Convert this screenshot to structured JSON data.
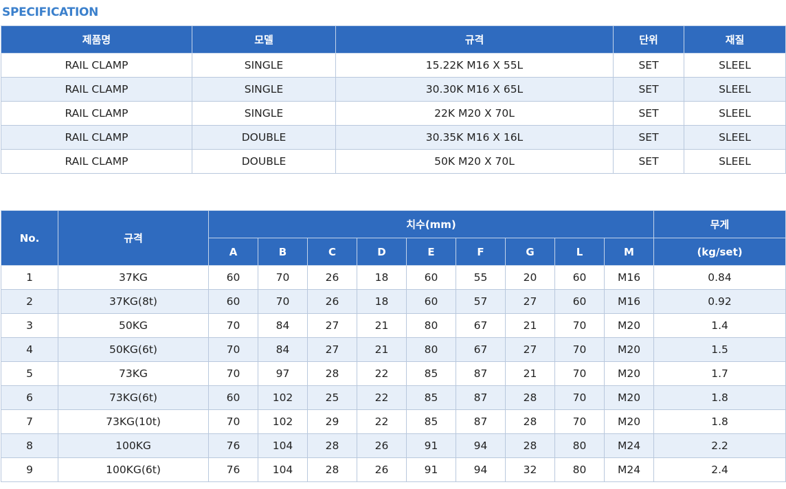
{
  "section_title": "SPECIFICATION",
  "spec_table": {
    "headers": [
      "제품명",
      "모델",
      "규격",
      "단위",
      "재질"
    ],
    "rows": [
      [
        "RAIL CLAMP",
        "SINGLE",
        "15.22K  M16 X 55L",
        "SET",
        "SLEEL"
      ],
      [
        "RAIL CLAMP",
        "SINGLE",
        "30.30K  M16 X 65L",
        "SET",
        "SLEEL"
      ],
      [
        "RAIL CLAMP",
        "SINGLE",
        "22K  M20 X 70L",
        "SET",
        "SLEEL"
      ],
      [
        "RAIL CLAMP",
        "DOUBLE",
        "30.35K  M16 X 16L",
        "SET",
        "SLEEL"
      ],
      [
        "RAIL CLAMP",
        "DOUBLE",
        "50K  M20 X 70L",
        "SET",
        "SLEEL"
      ]
    ]
  },
  "dim_table": {
    "headers": {
      "no": "No.",
      "spec": "규격",
      "dimensions": "치수(mm)",
      "weight": "무게",
      "weight_unit": "(kg/set)",
      "dim_cols": [
        "A",
        "B",
        "C",
        "D",
        "E",
        "F",
        "G",
        "L",
        "M"
      ]
    },
    "rows": [
      [
        "1",
        "37KG",
        "60",
        "70",
        "26",
        "18",
        "60",
        "55",
        "20",
        "60",
        "M16",
        "0.84"
      ],
      [
        "2",
        "37KG(8t)",
        "60",
        "70",
        "26",
        "18",
        "60",
        "57",
        "27",
        "60",
        "M16",
        "0.92"
      ],
      [
        "3",
        "50KG",
        "70",
        "84",
        "27",
        "21",
        "80",
        "67",
        "21",
        "70",
        "M20",
        "1.4"
      ],
      [
        "4",
        "50KG(6t)",
        "70",
        "84",
        "27",
        "21",
        "80",
        "67",
        "27",
        "70",
        "M20",
        "1.5"
      ],
      [
        "5",
        "73KG",
        "70",
        "97",
        "28",
        "22",
        "85",
        "87",
        "21",
        "70",
        "M20",
        "1.7"
      ],
      [
        "6",
        "73KG(6t)",
        "60",
        "102",
        "25",
        "22",
        "85",
        "87",
        "28",
        "70",
        "M20",
        "1.8"
      ],
      [
        "7",
        "73KG(10t)",
        "70",
        "102",
        "29",
        "22",
        "85",
        "87",
        "28",
        "70",
        "M20",
        "1.8"
      ],
      [
        "8",
        "100KG",
        "76",
        "104",
        "28",
        "26",
        "91",
        "94",
        "28",
        "80",
        "M24",
        "2.2"
      ],
      [
        "9",
        "100KG(6t)",
        "76",
        "104",
        "28",
        "26",
        "91",
        "94",
        "32",
        "80",
        "M24",
        "2.4"
      ]
    ]
  }
}
